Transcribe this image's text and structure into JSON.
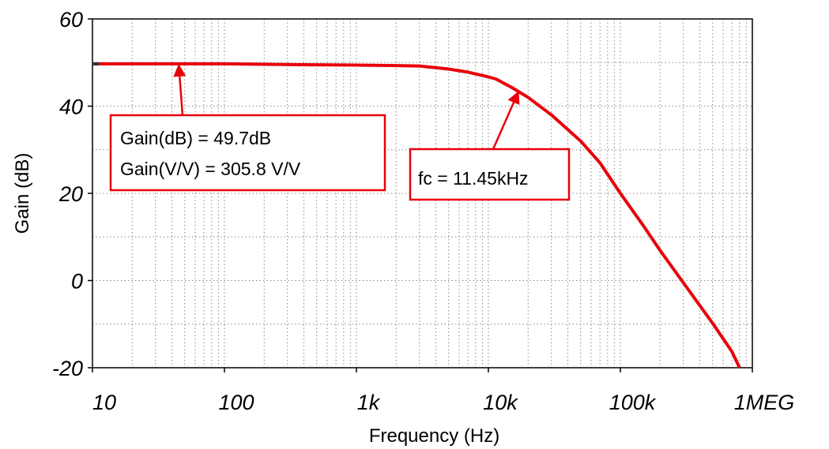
{
  "chart_data": {
    "type": "line",
    "xlabel": "Frequency (Hz)",
    "ylabel": "Gain (dB)",
    "xscale": "log",
    "xlim": [
      10,
      1000000
    ],
    "ylim": [
      -20,
      60
    ],
    "grid": true,
    "x_ticks": [
      {
        "value": 10,
        "label": "10"
      },
      {
        "value": 100,
        "label": "100"
      },
      {
        "value": 1000,
        "label": "1k"
      },
      {
        "value": 10000,
        "label": "10k"
      },
      {
        "value": 100000,
        "label": "100k"
      },
      {
        "value": 1000000,
        "label": "1MEG"
      }
    ],
    "y_ticks": [
      {
        "value": 60,
        "label": "60"
      },
      {
        "value": 40,
        "label": "40"
      },
      {
        "value": 20,
        "label": "20"
      },
      {
        "value": 0,
        "label": "0"
      },
      {
        "value": -20,
        "label": "-20"
      }
    ],
    "series": [
      {
        "color": "#e8000b",
        "x": [
          10,
          100,
          400,
          1000,
          2000,
          3000,
          5000,
          7000,
          10000,
          11450,
          15000,
          20000,
          30000,
          50000,
          70000,
          100000,
          150000,
          200000,
          300000,
          500000,
          700000,
          800000
        ],
        "y": [
          49.7,
          49.7,
          49.5,
          49.4,
          49.3,
          49.2,
          48.5,
          47.8,
          46.7,
          46.2,
          44.3,
          42.0,
          38.0,
          32.0,
          27.0,
          20.0,
          12.5,
          6.9,
          -0.5,
          -9.8,
          -16.3,
          -20.0
        ]
      }
    ],
    "annotations": [
      {
        "id": "gain",
        "lines": [
          "Gain(dB) = 49.7dB",
          "Gain(V/V) = 305.8 V/V"
        ],
        "arrow_to": {
          "x": 45,
          "y": 49.7
        }
      },
      {
        "id": "fc",
        "lines": [
          "fc = 11.45kHz"
        ],
        "arrow_to": {
          "x": 17000,
          "y": 43.5
        }
      }
    ]
  }
}
